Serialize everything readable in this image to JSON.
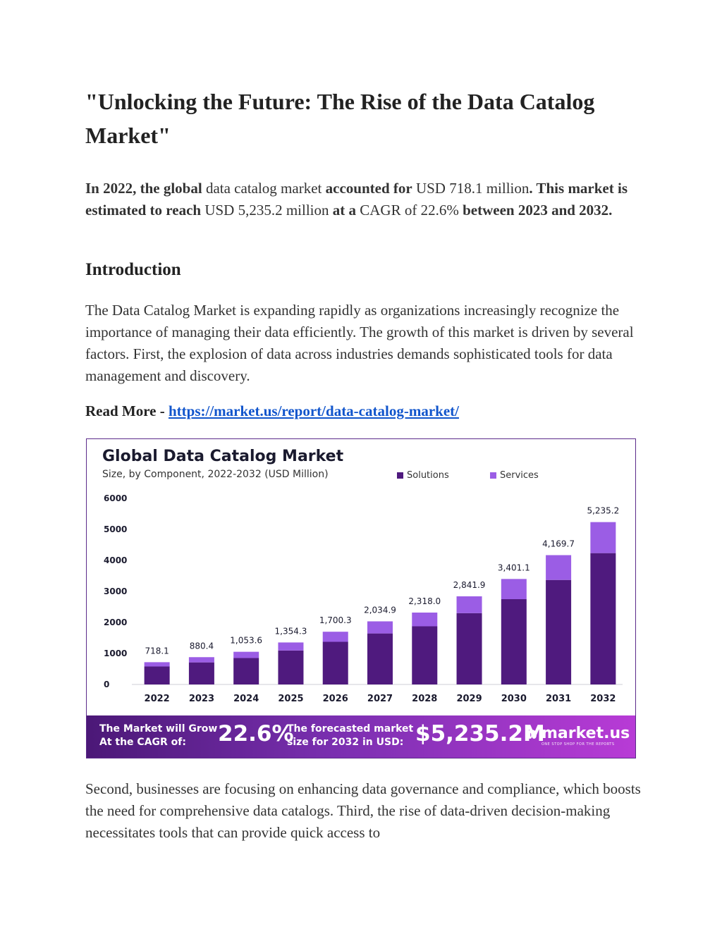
{
  "doc": {
    "title": "\"Unlocking the Future: The Rise of the Data Catalog Market\"",
    "summary": {
      "s1": "In 2022, the global",
      "s2": " data catalog market ",
      "s3": "accounted for",
      "s4": " USD 718.1 million",
      "s5": ". This market is estimated to reach",
      "s6": " USD 5,235.2 million ",
      "s7": "at a",
      "s8": " CAGR of 22.6% ",
      "s9": "between 2023 and 2032."
    },
    "heading_intro": "Introduction",
    "intro_paragraph": "The Data Catalog Market is expanding rapidly as organizations increasingly recognize the importance of managing their data efficiently. The growth of this market is driven by several factors. First, the explosion of data across industries demands sophisticated tools for data management and discovery.",
    "read_more_label": "Read More - ",
    "read_more_link": "https://market.us/report/data-catalog-market/",
    "second_paragraph": " Second, businesses are focusing on enhancing data governance and compliance, which boosts the need for comprehensive data catalogs. Third, the rise of data-driven decision-making necessitates tools that can provide quick access to"
  },
  "figure": {
    "banner": {
      "label1": "The Market will Grow At the CAGR of:",
      "value1": "22.6%",
      "label2": "The forecasted market size for 2032 in USD:",
      "value2": "$5,235.2M",
      "brand": "market.us",
      "tagline": "ONE STOP SHOP FOR THE REPORTS"
    }
  },
  "chart_data": {
    "type": "bar",
    "stacked": true,
    "title": "Global Data Catalog Market",
    "subtitle": "Size, by Component, 2022-2032 (USD Million)",
    "categories": [
      "2022",
      "2023",
      "2024",
      "2025",
      "2026",
      "2027",
      "2028",
      "2029",
      "2030",
      "2031",
      "2032"
    ],
    "series": [
      {
        "name": "Solutions",
        "color": "#4f1a7e",
        "values": [
          580,
          712,
          852,
          1095,
          1375,
          1645,
          1875,
          2300,
          2750,
          3370,
          4235
        ]
      },
      {
        "name": "Services",
        "color": "#9b5de5",
        "values": [
          138.1,
          168.4,
          201.6,
          259.3,
          325.3,
          389.9,
          443.0,
          541.9,
          651.1,
          799.7,
          1000.2
        ]
      }
    ],
    "totals_labels": [
      "718.1",
      "880.4",
      "1,053.6",
      "1,354.3",
      "1,700.3",
      "2,034.9",
      "2,318.0",
      "2,841.9",
      "3,401.1",
      "4,169.7",
      "5,235.2"
    ],
    "yticks": [
      "6000",
      "5000",
      "4000",
      "3000",
      "2000",
      "1000",
      "0"
    ],
    "ylim": [
      0,
      6000
    ],
    "legend_position": "top-right"
  }
}
